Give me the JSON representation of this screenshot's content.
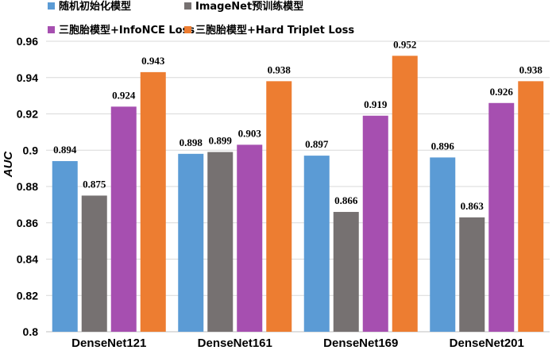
{
  "chart_data": {
    "type": "bar",
    "categories": [
      "DenseNet121",
      "DenseNet161",
      "DenseNet169",
      "DenseNet201"
    ],
    "series": [
      {
        "name": "随机初始化模型",
        "color": "#5b9bd5",
        "values": [
          0.894,
          0.898,
          0.897,
          0.896
        ]
      },
      {
        "name": "ImageNet预训练模型",
        "color": "#767171",
        "values": [
          0.875,
          0.899,
          0.866,
          0.863
        ]
      },
      {
        "name": "三胞胎模型+InfoNCE Loss",
        "color": "#a64fb0",
        "values": [
          0.924,
          0.903,
          0.919,
          0.926
        ]
      },
      {
        "name": "三胞胎模型+Hard Triplet Loss",
        "color": "#ed7d31",
        "values": [
          0.943,
          0.938,
          0.952,
          0.938
        ]
      }
    ],
    "value_labels": [
      [
        "0.894",
        "0.898",
        "0.897",
        "0.896"
      ],
      [
        "0.875",
        "0.899",
        "0.866",
        "0.863"
      ],
      [
        "0.924",
        "0.903",
        "0.919",
        "0.926"
      ],
      [
        "0.943",
        "0.938",
        "0.952",
        "0.938"
      ]
    ],
    "ylabel": "AUC",
    "ylim": [
      0.8,
      0.96
    ],
    "yticks": [
      "0.8",
      "0.82",
      "0.84",
      "0.86",
      "0.88",
      "0.9",
      "0.92",
      "0.94",
      "0.96"
    ],
    "grid": true,
    "legend_position": "top-left"
  }
}
